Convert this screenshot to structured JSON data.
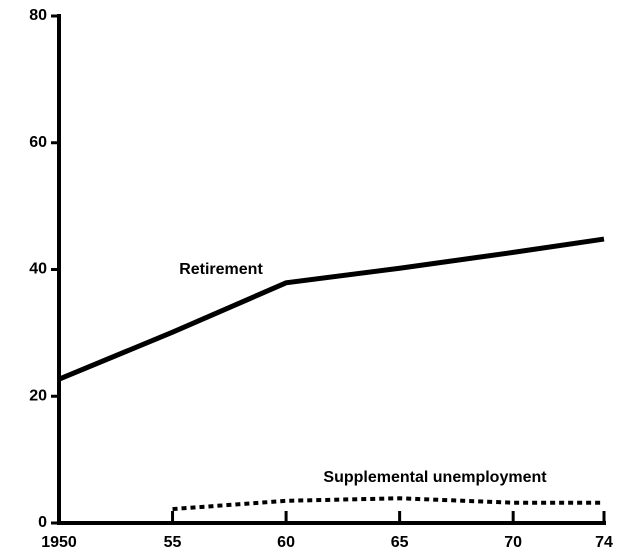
{
  "chart_data": {
    "type": "line",
    "x": [
      1950,
      1955,
      1960,
      1965,
      1970,
      1974
    ],
    "series": [
      {
        "name": "Retirement",
        "color": "#000000",
        "dash": false,
        "values": [
          22.7,
          30.1,
          37.9,
          40.2,
          42.7,
          44.8
        ]
      },
      {
        "name": "Supplemental unemployment",
        "color": "#000000",
        "dash": true,
        "values": [
          null,
          2.2,
          3.5,
          3.9,
          3.2,
          3.2
        ]
      }
    ],
    "xlim": [
      1950,
      1974
    ],
    "xticks": [
      1950,
      {
        "value": 1955,
        "label": "55"
      },
      {
        "value": 1960,
        "label": "60"
      },
      {
        "value": 1965,
        "label": "65"
      },
      {
        "value": 1970,
        "label": "70"
      },
      {
        "value": 1974,
        "label": "74"
      }
    ],
    "ylim": [
      0,
      80
    ],
    "yticks": [
      0,
      20,
      40,
      60,
      80
    ],
    "grid": false
  }
}
